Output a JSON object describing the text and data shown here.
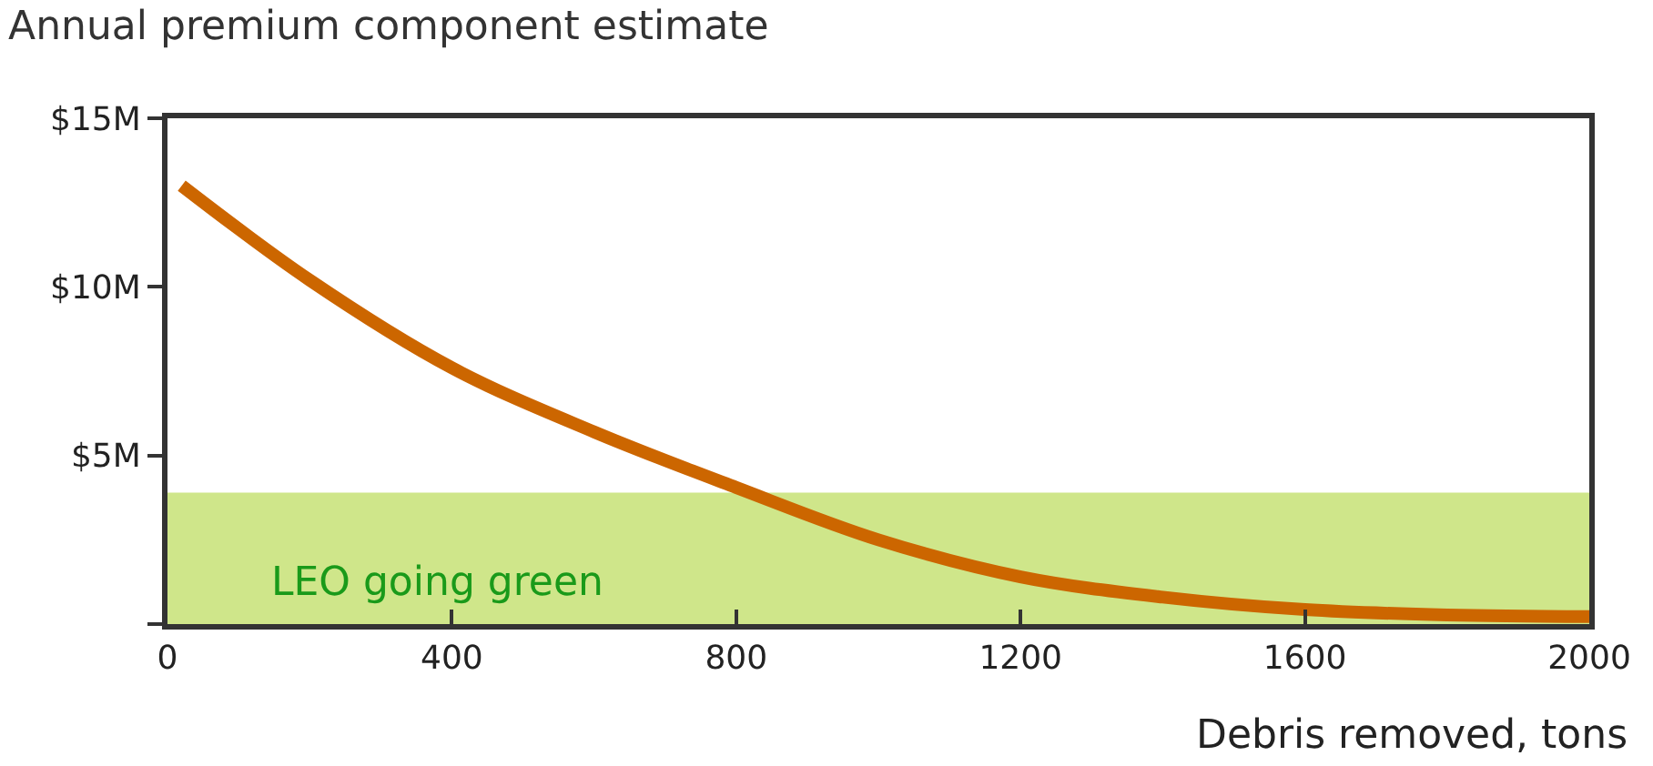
{
  "chart_data": {
    "type": "line",
    "title": "Annual premium component estimate",
    "xlabel": "Debris removed, tons",
    "x": [
      20,
      200,
      400,
      600,
      800,
      1000,
      1200,
      1400,
      1600,
      1800,
      2000
    ],
    "series": [
      {
        "color": "#cc6600",
        "values": [
          13.0,
          10.2,
          7.6,
          5.7,
          4.05,
          2.5,
          1.4,
          0.8,
          0.43,
          0.27,
          0.22
        ]
      }
    ],
    "xlim": [
      0,
      2000
    ],
    "xticks": [
      0,
      400,
      800,
      1200,
      1600,
      2000
    ],
    "ylim": [
      0,
      15
    ],
    "yticks": [
      {
        "value": 0,
        "label": null
      },
      {
        "value": 5,
        "label": "$5M"
      },
      {
        "value": 10,
        "label": "$10M"
      },
      {
        "value": 15,
        "label": "$15M"
      }
    ],
    "bands": [
      {
        "axis": "y",
        "from": 0,
        "to": 3.9,
        "label": "LEO going green",
        "color": "#cfe68a"
      }
    ],
    "grid": false,
    "marker": "none",
    "line_style": "solid"
  }
}
